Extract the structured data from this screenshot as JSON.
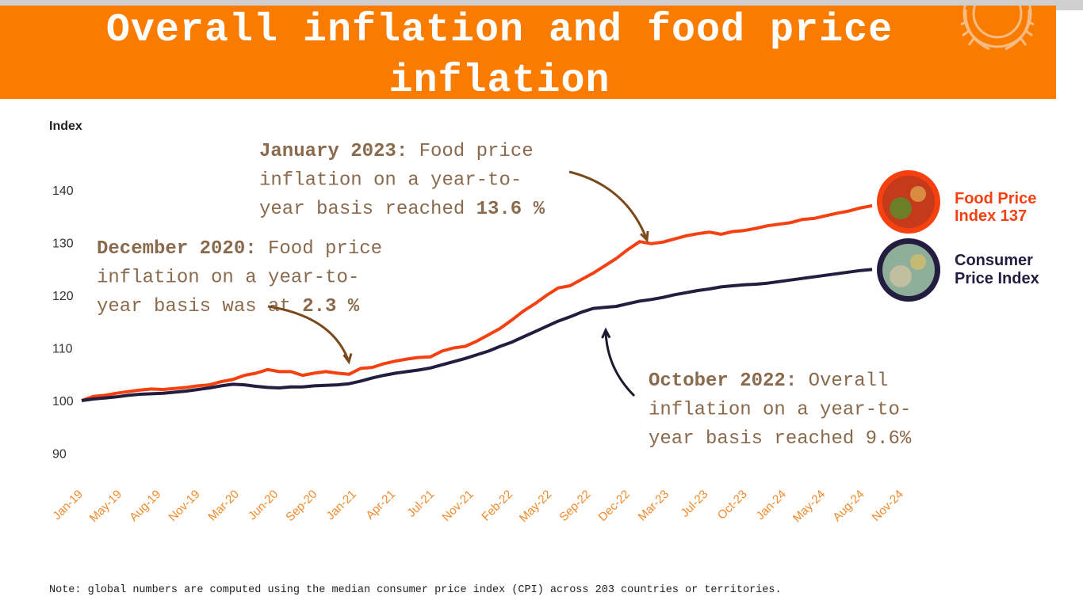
{
  "header": {
    "title": "Overall inflation and food price inflation"
  },
  "chart_data": {
    "type": "line",
    "title": "Overall inflation and food price inflation",
    "ylabel": "Index",
    "xlabel": "",
    "ylim": [
      90,
      145
    ],
    "yticks": [
      90,
      100,
      110,
      120,
      130,
      140
    ],
    "x_tick_labels": [
      "Jan-19",
      "May-19",
      "Aug-19",
      "Nov-19",
      "Mar-20",
      "Jun-20",
      "Sep-20",
      "Jan-21",
      "Apr-21",
      "Jul-21",
      "Nov-21",
      "Feb-22",
      "May-22",
      "Sep-22",
      "Dec-22",
      "Mar-23",
      "Jul-23",
      "Oct-23",
      "Jan-24",
      "May-24",
      "Aug-24",
      "Nov-24"
    ],
    "series": [
      {
        "name": "Food Price Index",
        "label_line1": "Food Price",
        "label_line2": "Index 137",
        "color": "#f5410f",
        "values": [
          100,
          100.8,
          101,
          101.4,
          101.7,
          102,
          102.2,
          102.1,
          102.3,
          102.5,
          102.8,
          103,
          103.6,
          104,
          104.8,
          105.2,
          105.9,
          105.5,
          105.5,
          104.8,
          105.2,
          105.5,
          105.2,
          105,
          106.1,
          106.3,
          107,
          107.5,
          107.9,
          108.2,
          108.3,
          109.4,
          110,
          110.3,
          111.3,
          112.5,
          113.7,
          115.3,
          117,
          118.4,
          120,
          121.4,
          121.8,
          123,
          124.2,
          125.6,
          127,
          128.7,
          130.2,
          129.8,
          130.1,
          130.7,
          131.3,
          131.7,
          132,
          131.6,
          132.1,
          132.3,
          132.7,
          133.2,
          133.5,
          133.8,
          134.4,
          134.6,
          135.1,
          135.6,
          136,
          136.6,
          137
        ]
      },
      {
        "name": "Consumer Price Index",
        "label_line1": "Consumer",
        "label_line2": "Price Index",
        "color": "#241d3f",
        "values": [
          100,
          100.3,
          100.5,
          100.7,
          101,
          101.2,
          101.3,
          101.4,
          101.6,
          101.8,
          102.1,
          102.4,
          102.8,
          103.1,
          103,
          102.7,
          102.5,
          102.4,
          102.6,
          102.6,
          102.8,
          102.9,
          103,
          103.2,
          103.7,
          104.3,
          104.8,
          105.2,
          105.5,
          105.8,
          106.2,
          106.8,
          107.4,
          108,
          108.7,
          109.4,
          110.3,
          111.1,
          112.1,
          113.1,
          114.1,
          115.1,
          115.9,
          116.8,
          117.5,
          117.7,
          117.9,
          118.4,
          118.9,
          119.2,
          119.6,
          120.1,
          120.5,
          120.9,
          121.2,
          121.6,
          121.8,
          122,
          122.1,
          122.3,
          122.6,
          122.9,
          123.2,
          123.5,
          123.8,
          124.1,
          124.4,
          124.7,
          124.9
        ]
      }
    ],
    "annotations": [
      {
        "name": "annotation-january-2023",
        "bold": "January 2023:",
        "lines": [
          "Food price",
          "inflation on a year-to-",
          "year basis reached"
        ],
        "value": "13.6 %"
      },
      {
        "name": "annotation-december-2020",
        "bold": "December 2020:",
        "lines": [
          "Food price",
          "inflation on a year-to-",
          "year basis was at"
        ],
        "value": "2.3 %"
      },
      {
        "name": "annotation-october-2022",
        "bold": "October 2022:",
        "lines": [
          "Overall",
          "inflation on a year-to-",
          "year basis reached 9.6%"
        ],
        "value": ""
      }
    ]
  },
  "note": "Note: global numbers are computed using the median consumer price index (CPI) across 203 countries or territories."
}
